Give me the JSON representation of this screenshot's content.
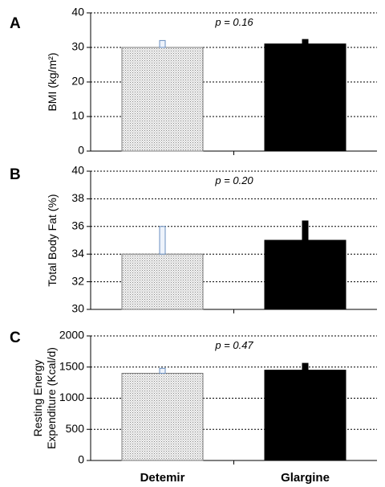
{
  "chart_data": [
    {
      "type": "bar",
      "panel": "A",
      "categories": [
        "Detemir",
        "Glargine"
      ],
      "values": [
        30,
        31
      ],
      "error_upper": [
        32,
        32.3
      ],
      "annotation": "p = 0.16",
      "ylabel": "BMI (kg/m²)",
      "ylim": [
        0,
        40
      ],
      "yticks": [
        0,
        10,
        20,
        30,
        40
      ],
      "grid": true,
      "fills": [
        "#d8d8d8",
        "#000000"
      ]
    },
    {
      "type": "bar",
      "panel": "B",
      "categories": [
        "Detemir",
        "Glargine"
      ],
      "values": [
        34,
        35
      ],
      "error_upper": [
        36,
        36.4
      ],
      "annotation": "p = 0.20",
      "ylabel": "Total Body Fat (%)",
      "ylim": [
        30,
        40
      ],
      "yticks": [
        30,
        32,
        34,
        36,
        38,
        40
      ],
      "grid": true,
      "fills": [
        "#d8d8d8",
        "#000000"
      ]
    },
    {
      "type": "bar",
      "panel": "C",
      "categories": [
        "Detemir",
        "Glargine"
      ],
      "values": [
        1400,
        1450
      ],
      "error_upper": [
        1480,
        1560
      ],
      "annotation": "p = 0.47",
      "ylabel": [
        "Resting Energy",
        "Expenditure (Kcal/d)"
      ],
      "ylim": [
        0,
        2000
      ],
      "yticks": [
        0,
        500,
        1000,
        1500,
        2000
      ],
      "grid": true,
      "fills": [
        "#d8d8d8",
        "#000000"
      ]
    }
  ],
  "x_category_labels": [
    "Detemir",
    "Glargine"
  ]
}
